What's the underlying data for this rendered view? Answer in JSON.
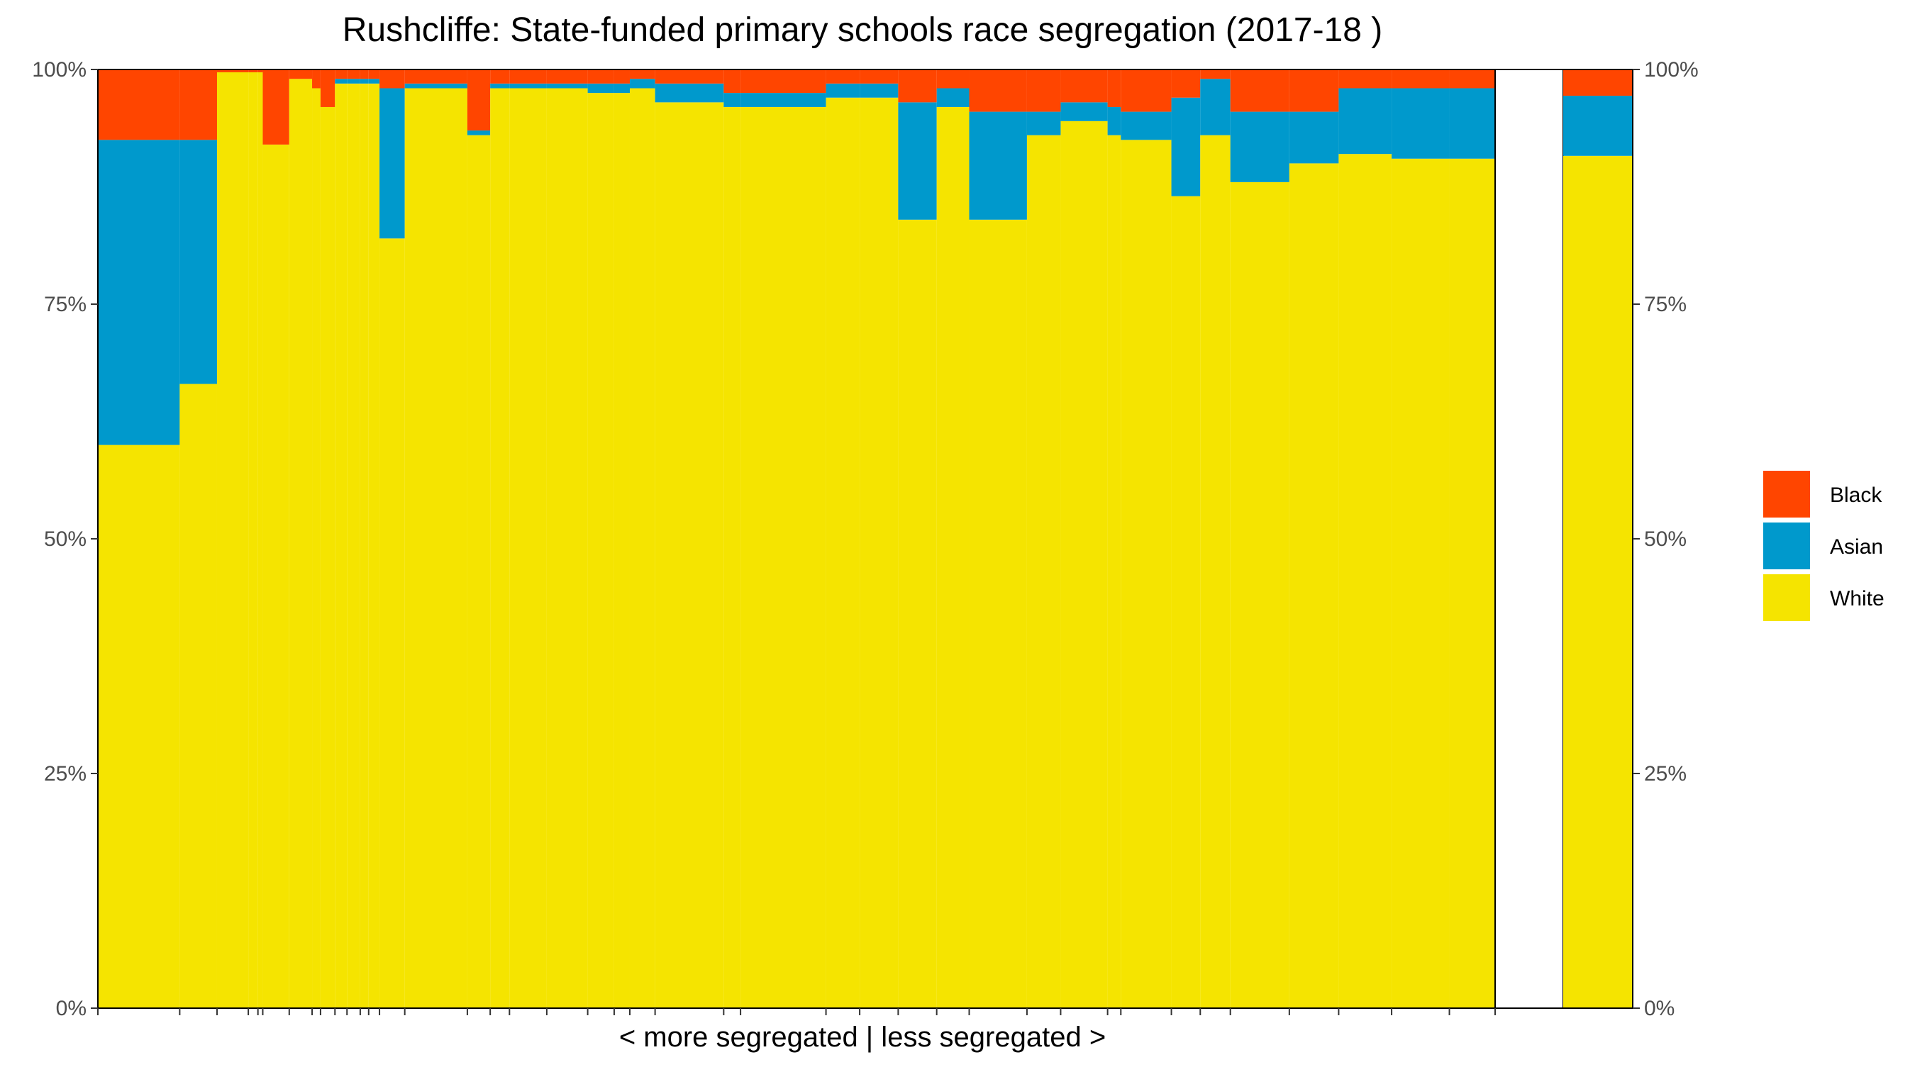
{
  "chart_data": {
    "type": "bar",
    "subtype": "stacked-100-variable-width",
    "title": "Rushcliffe: State-funded primary schools race segregation (2017-18 )",
    "xlabel": "< more segregated | less segregated >",
    "ylabel": "",
    "ylim": [
      0,
      1
    ],
    "yticks": [
      "0%",
      "25%",
      "50%",
      "75%",
      "100%"
    ],
    "grid": false,
    "legend_position": "right",
    "legend": [
      {
        "name": "Black",
        "color": "#FF4500"
      },
      {
        "name": "Asian",
        "color": "#0099CC"
      },
      {
        "name": "White",
        "color": "#F5E400"
      }
    ],
    "colors": {
      "black": "#FF4500",
      "asian": "#0099CC",
      "white": "#F5E400",
      "border": "#000000"
    },
    "schools_relative_width": [
      68,
      31,
      26,
      8,
      4,
      22,
      19,
      7,
      12,
      10,
      11,
      7,
      9,
      21,
      52,
      19,
      16,
      31,
      34,
      22,
      13,
      21,
      57,
      14,
      71,
      28,
      32,
      32,
      27,
      48,
      28,
      39,
      11,
      42,
      24,
      25,
      49,
      41,
      44,
      48,
      38
    ],
    "schools_white_share": [
      0.6,
      0.665,
      0.997,
      0.997,
      0.997,
      0.92,
      0.99,
      0.98,
      0.96,
      0.985,
      0.985,
      0.985,
      0.985,
      0.82,
      0.98,
      0.93,
      0.98,
      0.98,
      0.98,
      0.975,
      0.975,
      0.98,
      0.965,
      0.96,
      0.96,
      0.97,
      0.97,
      0.84,
      0.96,
      0.84,
      0.93,
      0.945,
      0.93,
      0.925,
      0.865,
      0.93,
      0.88,
      0.9,
      0.91,
      0.905,
      0.905
    ],
    "schools_asian_share": [
      0.325,
      0.26,
      0.0,
      0.0,
      0.0,
      0.0,
      0.0,
      0.0,
      0.0,
      0.005,
      0.005,
      0.005,
      0.005,
      0.16,
      0.005,
      0.005,
      0.005,
      0.005,
      0.005,
      0.01,
      0.01,
      0.01,
      0.02,
      0.015,
      0.015,
      0.015,
      0.015,
      0.125,
      0.02,
      0.115,
      0.025,
      0.02,
      0.03,
      0.03,
      0.105,
      0.06,
      0.075,
      0.055,
      0.07,
      0.075,
      0.075
    ],
    "schools_black_share": [
      0.075,
      0.075,
      0.003,
      0.003,
      0.003,
      0.08,
      0.01,
      0.02,
      0.04,
      0.01,
      0.01,
      0.01,
      0.01,
      0.02,
      0.015,
      0.065,
      0.015,
      0.015,
      0.015,
      0.015,
      0.015,
      0.01,
      0.015,
      0.025,
      0.025,
      0.015,
      0.015,
      0.035,
      0.02,
      0.045,
      0.045,
      0.035,
      0.04,
      0.045,
      0.03,
      0.01,
      0.045,
      0.045,
      0.02,
      0.02,
      0.02
    ],
    "total_bar": {
      "white": 0.908,
      "asian": 0.064,
      "black": 0.028
    }
  }
}
